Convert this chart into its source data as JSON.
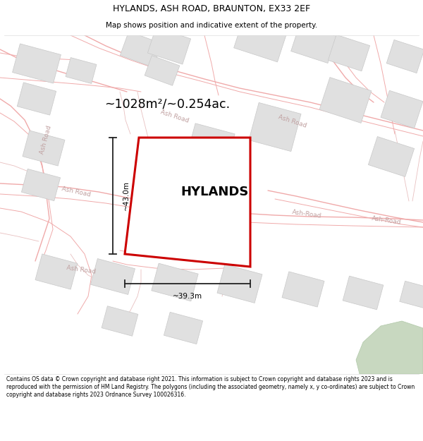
{
  "title_line1": "HYLANDS, ASH ROAD, BRAUNTON, EX33 2EF",
  "title_line2": "Map shows position and indicative extent of the property.",
  "area_text": "~1028m²/~0.254ac.",
  "property_name": "HYLANDS",
  "dim_vertical": "~43.0m",
  "dim_horizontal": "~39.3m",
  "footer_text": "Contains OS data © Crown copyright and database right 2021. This information is subject to Crown copyright and database rights 2023 and is reproduced with the permission of HM Land Registry. The polygons (including the associated geometry, namely x, y co-ordinates) are subject to Crown copyright and database rights 2023 Ordnance Survey 100026316.",
  "road_line_color": "#f0aaaa",
  "road_line_color2": "#e8c0c0",
  "building_fill": "#e0e0e0",
  "building_edge": "#c8c8c8",
  "plot_color": "#cc0000",
  "dim_color": "#222222",
  "green_color": "#c8d8c0",
  "green_edge": "#b0c8a8",
  "road_label_color": "#c0a0a0",
  "title_color": "#000000",
  "footer_color": "#000000",
  "map_bg": "#ffffff",
  "title_bg": "#ffffff",
  "footer_bg": "#ffffff"
}
